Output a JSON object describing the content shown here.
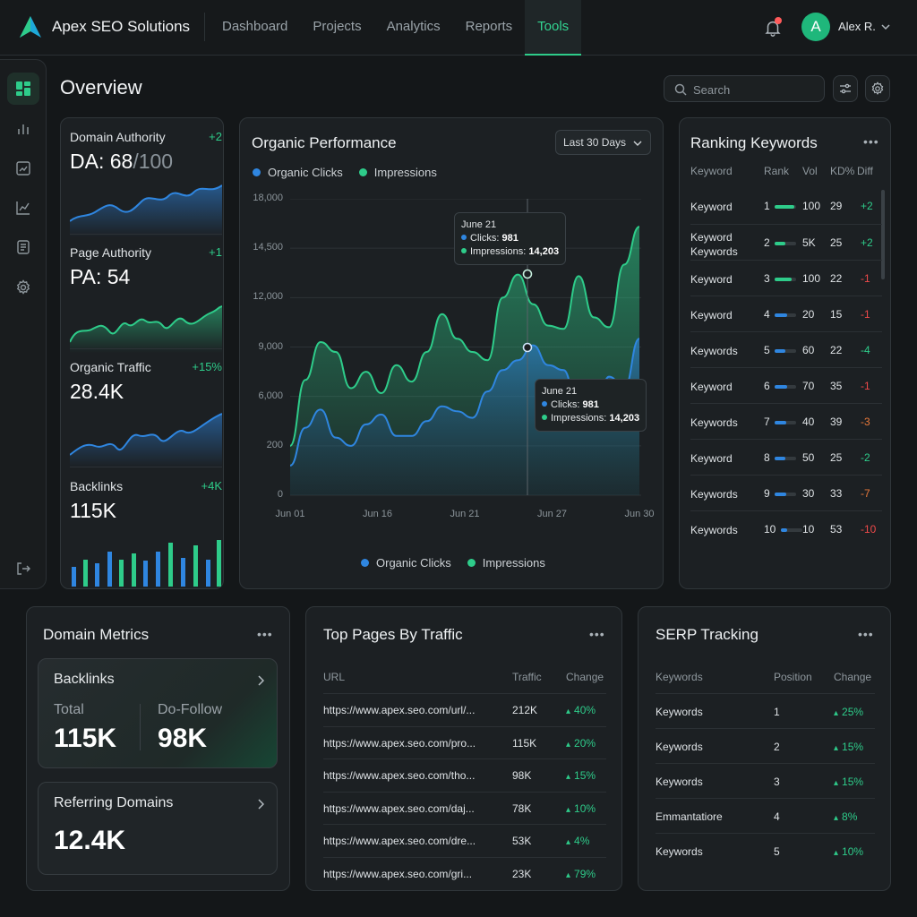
{
  "app": {
    "brand": "Apex SEO Solutions",
    "user": "Alex R.",
    "avatar_initial": "A"
  },
  "nav": [
    "Dashboard",
    "Projects",
    "Analytics",
    "Reports",
    "Tools"
  ],
  "nav_active": "Tools",
  "page_title": "Overview",
  "search": {
    "placeholder": "Search"
  },
  "colors": {
    "accent_green": "#2ecc8a",
    "accent_blue": "#2f86e0",
    "negative": "#ef4a4a"
  },
  "stats": [
    {
      "label": "Domain Authority",
      "delta": "+2",
      "value": "DA: 68",
      "value_sub": "/100"
    },
    {
      "label": "Page Authority",
      "delta": "+1",
      "value": "PA: 54"
    },
    {
      "label": "Organic Traffic",
      "delta": "+15%",
      "value": "28.4K"
    },
    {
      "label": "Backlinks",
      "delta": "+4K",
      "value": "115K"
    }
  ],
  "performance": {
    "title": "Organic Performance",
    "range": "Last 30 Days",
    "legend": [
      "Organic Clicks",
      "Impressions"
    ],
    "tooltip": {
      "date": "June 21",
      "clicks_label": "Clicks:",
      "clicks": "981",
      "impressions_label": "Impressions:",
      "impressions": "14,203"
    }
  },
  "chart_data": {
    "type": "area",
    "title": "Organic Performance",
    "y_ticks": [
      "18,000",
      "14,500",
      "12,000",
      "9,000",
      "6,000",
      "200",
      "0"
    ],
    "x_ticks": [
      "Jun 01",
      "Jun 16",
      "Jun 21",
      "Jun 27",
      "Jun 30"
    ],
    "grid": true,
    "legend_placement": "top-left and bottom-center",
    "series": [
      {
        "name": "Impressions",
        "color": "#2ecc8a",
        "values": [
          3000,
          7000,
          9300,
          8700,
          6500,
          7500,
          6200,
          7900,
          6900,
          8700,
          11000,
          9500,
          8700,
          8200,
          12000,
          13400,
          11600,
          10300,
          10100,
          13300,
          10800,
          10200,
          14000,
          16300
        ]
      },
      {
        "name": "Organic Clicks",
        "color": "#2f86e0",
        "values": [
          1800,
          4100,
          5200,
          3500,
          3000,
          4300,
          4900,
          3600,
          3600,
          4500,
          5400,
          5100,
          4700,
          6300,
          7600,
          8200,
          9100,
          7900,
          7600,
          5000,
          4400,
          7200,
          6500,
          9500
        ]
      }
    ]
  },
  "ranking": {
    "title": "Ranking Keywords",
    "columns": [
      "Keyword",
      "Rank",
      "Vol",
      "KD%",
      "Diff"
    ],
    "rows": [
      {
        "keyword": "Keyword",
        "rank": "1",
        "vol": "100",
        "kd": "29",
        "diff": "+2",
        "bar": 0.9
      },
      {
        "keyword": "Keyword\nKeywords",
        "rank": "2",
        "vol": "5K",
        "kd": "25",
        "diff": "+2",
        "bar": 0.5
      },
      {
        "keyword": "Keyword",
        "rank": "3",
        "vol": "100",
        "kd": "22",
        "diff": "-1",
        "bar": 0.8
      },
      {
        "keyword": "Keyword",
        "rank": "4",
        "vol": "20",
        "kd": "15",
        "diff": "-1",
        "bar": 0.6
      },
      {
        "keyword": "Keywords",
        "rank": "5",
        "vol": "60",
        "kd": "22",
        "diff": "-4",
        "bar": 0.5
      },
      {
        "keyword": "Keyword",
        "rank": "6",
        "vol": "70",
        "kd": "35",
        "diff": "-1",
        "bar": 0.6
      },
      {
        "keyword": "Keywords",
        "rank": "7",
        "vol": "40",
        "kd": "39",
        "diff": "-3",
        "bar": 0.55
      },
      {
        "keyword": "Keyword",
        "rank": "8",
        "vol": "50",
        "kd": "25",
        "diff": "-2",
        "bar": 0.5
      },
      {
        "keyword": "Keywords",
        "rank": "9",
        "vol": "30",
        "kd": "33",
        "diff": "-7",
        "bar": 0.55
      },
      {
        "keyword": "Keywords",
        "rank": "10",
        "vol": "10",
        "kd": "53",
        "diff": "-10",
        "bar": 0.3
      }
    ]
  },
  "domain_metrics": {
    "title": "Domain Metrics",
    "backlinks": {
      "title": "Backlinks",
      "total_label": "Total",
      "total": "115K",
      "dofollow_label": "Do-Follow",
      "dofollow": "98K"
    },
    "referring": {
      "title": "Referring Domains",
      "value": "12.4K"
    }
  },
  "top_pages": {
    "title": "Top Pages By Traffic",
    "columns": [
      "URL",
      "Traffic",
      "Change"
    ],
    "rows": [
      {
        "url": "https://www.apex.seo.com/url/...",
        "traffic": "212K",
        "change": "40%"
      },
      {
        "url": "https://www.apex.seo.com/pro...",
        "traffic": "115K",
        "change": "20%"
      },
      {
        "url": "https://www.apex.seo.com/tho...",
        "traffic": "98K",
        "change": "15%"
      },
      {
        "url": "https://www.apex.seo.com/daj...",
        "traffic": "78K",
        "change": "10%"
      },
      {
        "url": "https://www.apex.seo.com/dre...",
        "traffic": "53K",
        "change": "4%"
      },
      {
        "url": "https://www.apex.seo.com/gri...",
        "traffic": "23K",
        "change": "79%"
      }
    ]
  },
  "serp": {
    "title": "SERP Tracking",
    "columns": [
      "Keywords",
      "Position",
      "Change"
    ],
    "rows": [
      {
        "keyword": "Keywords",
        "position": "1",
        "change": "25%"
      },
      {
        "keyword": "Keywords",
        "position": "2",
        "change": "15%"
      },
      {
        "keyword": "Keywords",
        "position": "3",
        "change": "15%"
      },
      {
        "keyword": "Emmantatiore",
        "position": "4",
        "change": "8%"
      },
      {
        "keyword": "Keywords",
        "position": "5",
        "change": "10%"
      }
    ]
  }
}
